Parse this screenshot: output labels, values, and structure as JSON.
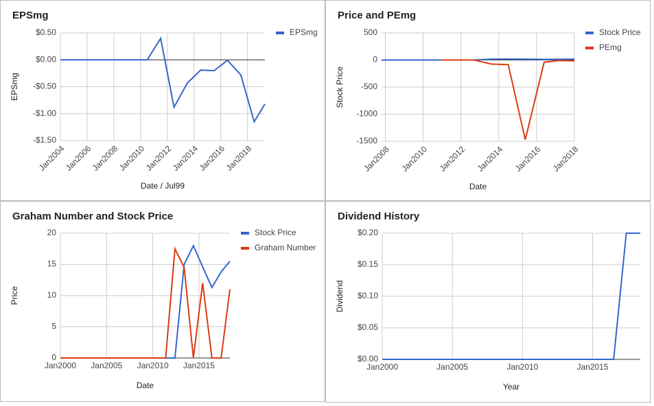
{
  "chart_data": [
    {
      "type": "line",
      "title": "EPSmg",
      "x_label": "Date / Jul99",
      "y_label": "EPSmg",
      "x": [
        2004,
        2006,
        2008,
        2010.5,
        2011.5,
        2012.5,
        2013.5,
        2014.5,
        2015.5,
        2016.5,
        2017.5,
        2018.5,
        2019.3
      ],
      "series": [
        {
          "name": "EPSmg",
          "color": "#3366cc",
          "values": [
            0,
            0,
            0,
            0,
            0.4,
            -0.88,
            -0.43,
            -0.19,
            -0.2,
            -0.01,
            -0.28,
            -1.15,
            -0.82
          ]
        }
      ],
      "xlim": [
        2004,
        2019.3
      ],
      "xticks": [
        {
          "value": 2004,
          "label": "Jan2004"
        },
        {
          "value": 2006,
          "label": "Jan2006"
        },
        {
          "value": 2008,
          "label": "Jan2008"
        },
        {
          "value": 2010,
          "label": "Jan2010"
        },
        {
          "value": 2012,
          "label": "Jan2012"
        },
        {
          "value": 2014,
          "label": "Jan2014"
        },
        {
          "value": 2016,
          "label": "Jan2016"
        },
        {
          "value": 2018,
          "label": "Jan2018"
        }
      ],
      "ylim": [
        -1.5,
        0.5
      ],
      "yticks": [
        {
          "value": 0.5,
          "label": "$0.50"
        },
        {
          "value": 0,
          "label": "$0.00"
        },
        {
          "value": -0.5,
          "label": "-$0.50"
        },
        {
          "value": -1,
          "label": "-$1.00"
        },
        {
          "value": -1.5,
          "label": "-$1.50"
        }
      ],
      "grid": true,
      "legend": "right",
      "xtick_rotation": -45
    },
    {
      "type": "line",
      "title": "Price and PEmg",
      "x_label": "Date",
      "y_label": "Stock Price",
      "x": [
        2007.8,
        2011.0,
        2012.7,
        2013.6,
        2014.5,
        2015.4,
        2016.4,
        2017.2,
        2018
      ],
      "series": [
        {
          "name": "Stock Price",
          "color": "#3366cc",
          "values": [
            0,
            0,
            0,
            15,
            18,
            15,
            11,
            14,
            15
          ]
        },
        {
          "name": "PEmg",
          "color": "#dc3912",
          "values": [
            null,
            0,
            0,
            -75,
            -85,
            -1470,
            -40,
            -10,
            -15
          ]
        }
      ],
      "xlim": [
        2007.8,
        2018
      ],
      "xticks": [
        {
          "value": 2008,
          "label": "Jan2008"
        },
        {
          "value": 2010,
          "label": "Jan2010"
        },
        {
          "value": 2012,
          "label": "Jan2012"
        },
        {
          "value": 2014,
          "label": "Jan2014"
        },
        {
          "value": 2016,
          "label": "Jan2016"
        },
        {
          "value": 2018,
          "label": "Jan2018"
        }
      ],
      "ylim": [
        -1500,
        500
      ],
      "yticks": [
        500,
        0,
        -500,
        -1000,
        -1500
      ],
      "grid": true,
      "legend": "right",
      "xtick_rotation": -45
    },
    {
      "type": "line",
      "title": "Graham Number and Stock Price",
      "x_label": "Date",
      "y_label": "Price",
      "x": [
        2000,
        2011.4,
        2012.4,
        2013.4,
        2014.4,
        2015.4,
        2016.4,
        2017.4,
        2018.35
      ],
      "series": [
        {
          "name": "Stock Price",
          "color": "#3366cc",
          "values": [
            0,
            0,
            0,
            15,
            18,
            14.6,
            11.3,
            13.8,
            15.5
          ]
        },
        {
          "name": "Graham Number",
          "color": "#dc3912",
          "values": [
            0,
            0,
            17.5,
            14.5,
            0,
            12,
            0,
            0,
            11
          ]
        }
      ],
      "xlim": [
        2000,
        2018.35
      ],
      "xticks": [
        {
          "value": 2000,
          "label": "Jan2000"
        },
        {
          "value": 2005,
          "label": "Jan2005"
        },
        {
          "value": 2010,
          "label": "Jan2010"
        },
        {
          "value": 2015,
          "label": "Jan2015"
        }
      ],
      "ylim": [
        0,
        20
      ],
      "yticks": [
        0,
        5,
        10,
        15,
        20
      ],
      "grid": true,
      "legend": "right",
      "xtick_rotation": 0
    },
    {
      "type": "line",
      "title": "Dividend History",
      "x_label": "Year",
      "y_label": "Dividend",
      "x": [
        2000,
        2016.5,
        2017.4,
        2018.4
      ],
      "values": [
        0,
        0,
        0.2,
        0.2
      ],
      "color": "#3366cc",
      "xlim": [
        2000,
        2018.4
      ],
      "xticks": [
        {
          "value": 2000,
          "label": "Jan2000"
        },
        {
          "value": 2005,
          "label": "Jan2005"
        },
        {
          "value": 2010,
          "label": "Jan2010"
        },
        {
          "value": 2015,
          "label": "Jan2015"
        }
      ],
      "ylim": [
        0,
        0.2
      ],
      "yticks": [
        {
          "value": 0,
          "label": "$0.00"
        },
        {
          "value": 0.05,
          "label": "$0.05"
        },
        {
          "value": 0.1,
          "label": "$0.10"
        },
        {
          "value": 0.15,
          "label": "$0.15"
        },
        {
          "value": 0.2,
          "label": "$0.20"
        }
      ],
      "grid": true,
      "xtick_rotation": 0
    }
  ]
}
